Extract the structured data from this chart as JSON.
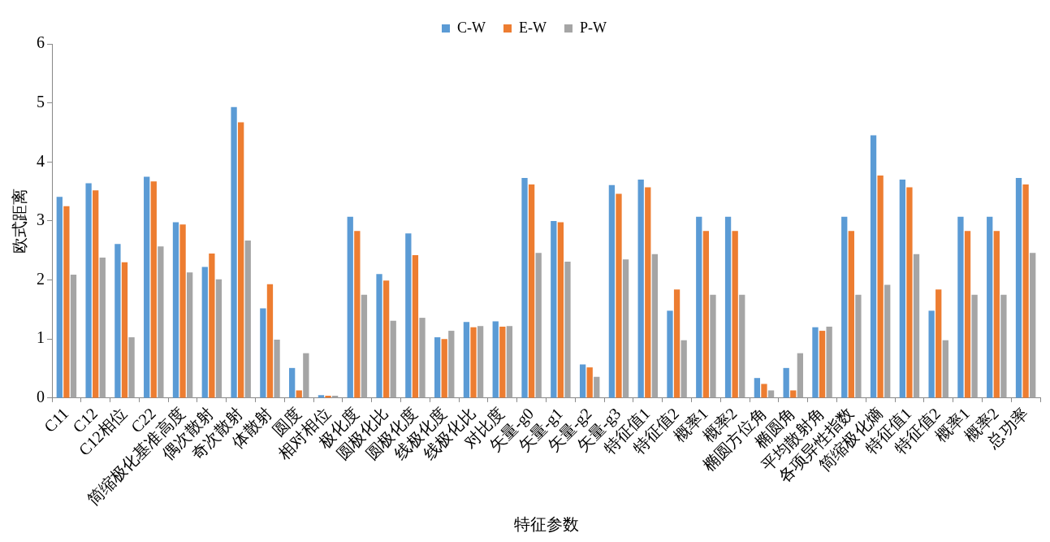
{
  "chart_data": {
    "type": "bar",
    "xlabel": "特征参数",
    "ylabel": "欧式距离",
    "categories": [
      "C11",
      "C12",
      "C12相位",
      "C22",
      "简缩极化基准高度",
      "偶次散射",
      "奇次散射",
      "体散射",
      "圆度",
      "相对相位",
      "极化度",
      "圆极化比",
      "圆极化度",
      "线极化度",
      "线极化比",
      "对比度",
      "矢量-g0",
      "矢量-g1",
      "矢量-g2",
      "矢量-g3",
      "特征值1",
      "特征值2",
      "概率1",
      "概率2",
      "椭圆方位角",
      "椭圆角",
      "平均散射角",
      "各项异性指数",
      "简缩极化熵",
      "特征值1",
      "特征值2",
      "概率1",
      "概率2",
      "总功率"
    ],
    "series": [
      {
        "name": "C-W",
        "color": "#5b9bd5",
        "values": [
          3.41,
          3.64,
          2.61,
          3.75,
          2.98,
          2.22,
          4.93,
          1.52,
          0.51,
          0.05,
          3.07,
          2.1,
          2.79,
          1.03,
          1.29,
          1.3,
          3.73,
          3.0,
          0.57,
          3.61,
          3.7,
          1.48,
          3.07,
          3.07,
          0.34,
          0.51,
          1.2,
          3.07,
          4.45,
          3.7,
          1.48,
          3.07,
          3.07,
          3.73
        ]
      },
      {
        "name": "E-W",
        "color": "#ed7d31",
        "values": [
          3.25,
          3.52,
          2.3,
          3.67,
          2.94,
          2.45,
          4.67,
          1.93,
          0.13,
          0.04,
          2.83,
          1.99,
          2.42,
          1.0,
          1.2,
          1.21,
          3.62,
          2.98,
          0.52,
          3.46,
          3.57,
          1.84,
          2.83,
          2.83,
          0.24,
          0.13,
          1.14,
          2.83,
          3.77,
          3.57,
          1.84,
          2.83,
          2.83,
          3.62
        ]
      },
      {
        "name": "P-W",
        "color": "#a5a5a5",
        "values": [
          2.09,
          2.38,
          1.03,
          2.57,
          2.13,
          2.01,
          2.67,
          0.99,
          0.76,
          0.04,
          1.75,
          1.31,
          1.36,
          1.14,
          1.22,
          1.22,
          2.46,
          2.31,
          0.36,
          2.35,
          2.44,
          0.98,
          1.75,
          1.75,
          0.13,
          0.76,
          1.21,
          1.75,
          1.92,
          2.44,
          0.98,
          1.75,
          1.75,
          2.46
        ]
      }
    ],
    "ylim": [
      0,
      6
    ],
    "yticks": [
      0,
      1,
      2,
      3,
      4,
      5,
      6
    ],
    "legend": "top"
  }
}
